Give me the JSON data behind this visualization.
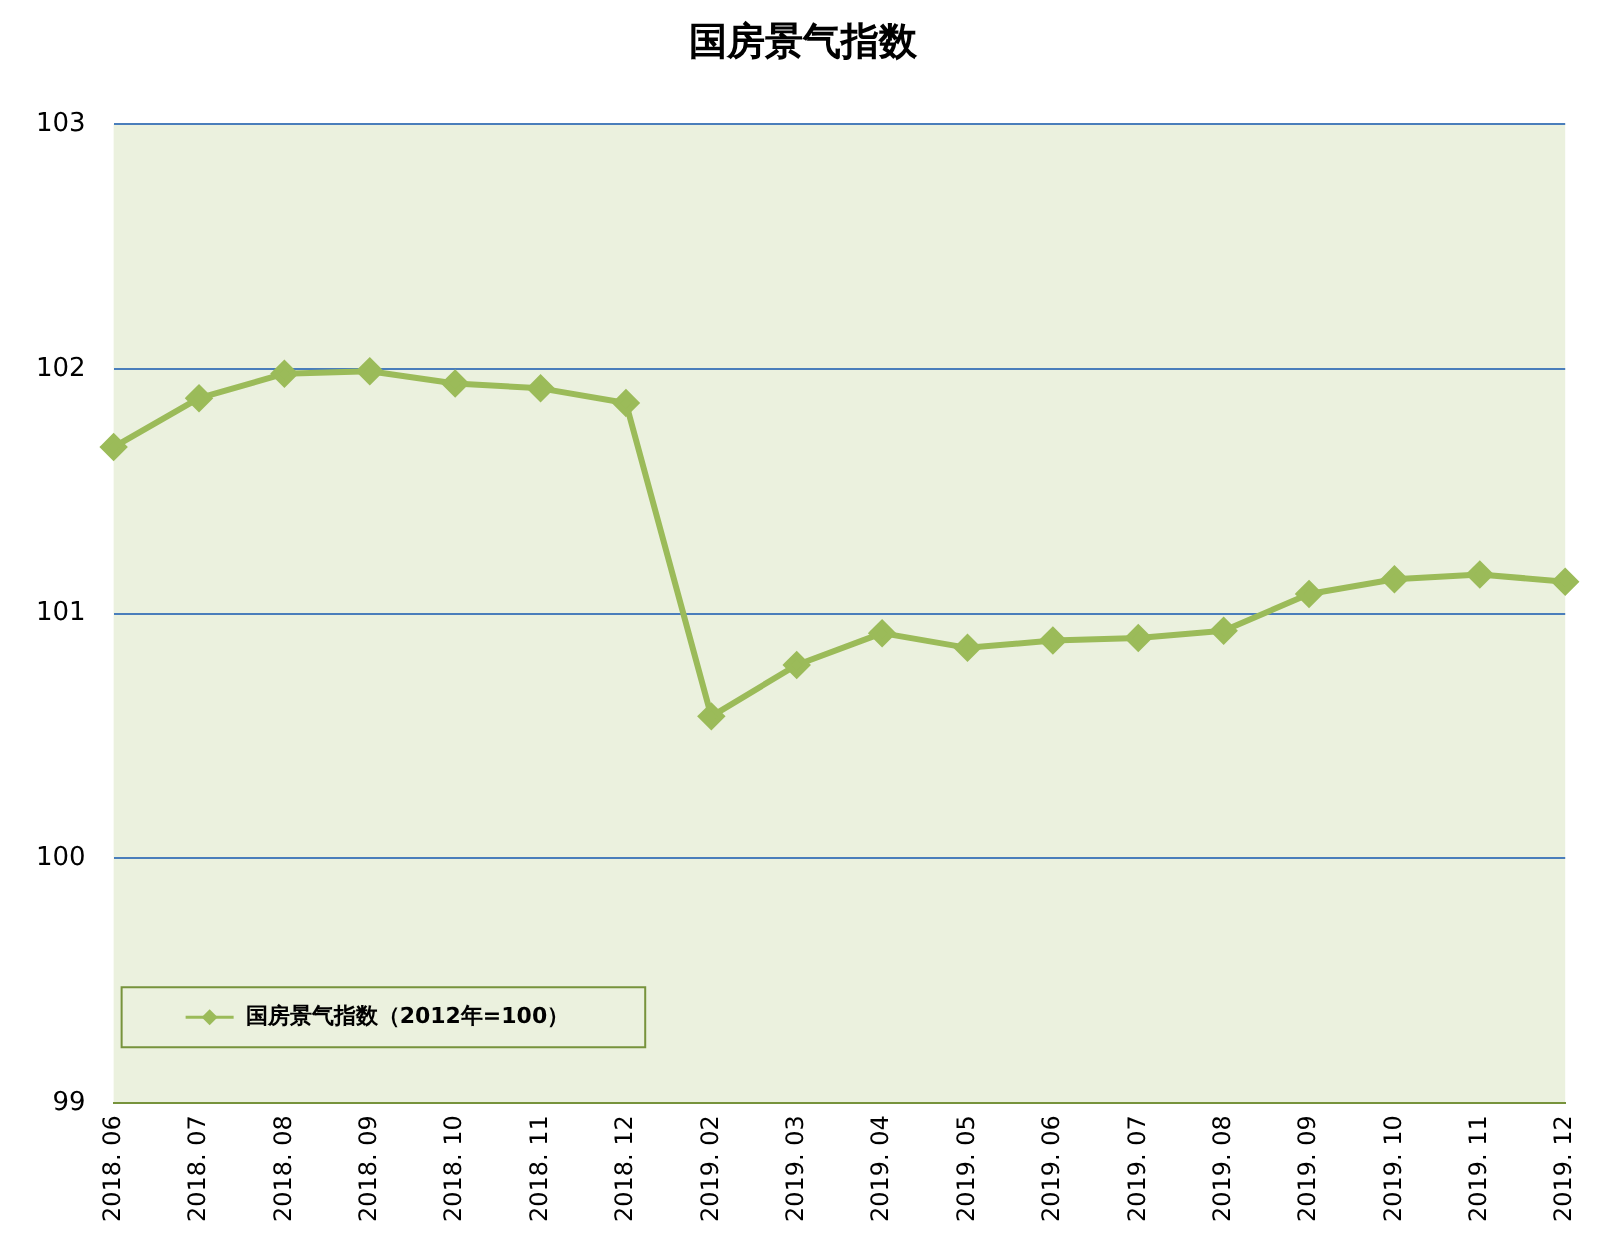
{
  "chart_data": {
    "type": "line",
    "title": "国房景气指数",
    "categories": [
      "2018. 06",
      "2018. 07",
      "2018. 08",
      "2018. 09",
      "2018. 10",
      "2018. 11",
      "2018. 12",
      "2019. 02",
      "2019. 03",
      "2019. 04",
      "2019. 05",
      "2019. 06",
      "2019. 07",
      "2019. 08",
      "2019. 09",
      "2019. 10",
      "2019. 11",
      "2019. 12"
    ],
    "series": [
      {
        "name": "国房景气指数（2012年=100）",
        "color": "#9bbb59",
        "values": [
          101.68,
          101.88,
          101.98,
          101.99,
          101.94,
          101.92,
          101.86,
          100.58,
          100.79,
          100.92,
          100.86,
          100.89,
          100.9,
          100.93,
          101.08,
          101.14,
          101.16,
          101.13
        ]
      }
    ],
    "ylim": [
      99,
      103
    ],
    "yticks": [
      99,
      100,
      101,
      102,
      103
    ],
    "grid": "y",
    "legend": "bottom left",
    "marker": "diamond",
    "line_style": "solid"
  }
}
